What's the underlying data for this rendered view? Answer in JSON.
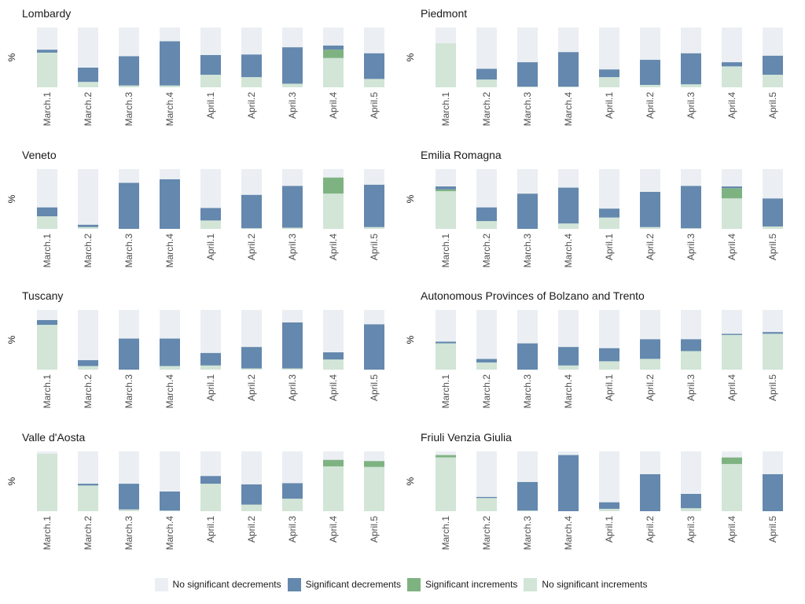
{
  "colors": {
    "no_sig_dec": "#EBEFF3",
    "sig_dec": "#6488AE",
    "sig_inc": "#7EB381",
    "no_sig_inc": "#D2E5D7"
  },
  "legend": [
    {
      "label": "No significant decrements",
      "color_key": "no_sig_dec"
    },
    {
      "label": "Significant decrements",
      "color_key": "sig_dec"
    },
    {
      "label": "Significant increments",
      "color_key": "sig_inc"
    },
    {
      "label": "No significant increments",
      "color_key": "no_sig_inc"
    }
  ],
  "chart_data": [
    {
      "type": "bar",
      "stacked": true,
      "normalized": true,
      "title": "Lombardy",
      "ylabel": "%",
      "categories": [
        "March.1",
        "March.2",
        "March.3",
        "March.4",
        "April.1",
        "April.2",
        "April.3",
        "April.4",
        "April.5"
      ],
      "series": [
        {
          "name": "No significant increments",
          "values": [
            58,
            9,
            3,
            3,
            21,
            17,
            6,
            49,
            14
          ]
        },
        {
          "name": "Significant increments",
          "values": [
            0,
            0,
            0,
            0,
            0,
            0,
            0,
            14,
            0
          ]
        },
        {
          "name": "Significant decrements",
          "values": [
            5,
            24,
            49,
            74,
            33,
            38,
            61,
            7,
            43
          ]
        },
        {
          "name": "No significant decrements",
          "values": [
            37,
            67,
            48,
            23,
            46,
            45,
            33,
            30,
            43
          ]
        }
      ]
    },
    {
      "type": "bar",
      "stacked": true,
      "normalized": true,
      "title": "Piedmont",
      "ylabel": "%",
      "categories": [
        "March.1",
        "March.2",
        "March.3",
        "March.4",
        "April.1",
        "April.2",
        "April.3",
        "April.4",
        "April.5"
      ],
      "series": [
        {
          "name": "No significant increments",
          "values": [
            74,
            13,
            1,
            1,
            17,
            4,
            5,
            35,
            21
          ]
        },
        {
          "name": "Significant increments",
          "values": [
            0,
            0,
            0,
            0,
            0,
            0,
            0,
            0,
            0
          ]
        },
        {
          "name": "Significant decrements",
          "values": [
            0,
            18,
            41,
            58,
            13,
            42,
            52,
            7,
            32
          ]
        },
        {
          "name": "No significant decrements",
          "values": [
            26,
            69,
            58,
            41,
            70,
            54,
            43,
            58,
            47
          ]
        }
      ]
    },
    {
      "type": "bar",
      "stacked": true,
      "normalized": true,
      "title": "Veneto",
      "ylabel": "%",
      "categories": [
        "March.1",
        "March.2",
        "March.3",
        "March.4",
        "April.1",
        "April.2",
        "April.3",
        "April.4",
        "April.5"
      ],
      "series": [
        {
          "name": "No significant increments",
          "values": [
            21,
            3,
            0,
            0,
            14,
            1,
            2,
            59,
            3
          ]
        },
        {
          "name": "Significant increments",
          "values": [
            0,
            0,
            0,
            0,
            0,
            0,
            0,
            27,
            0
          ]
        },
        {
          "name": "Significant decrements",
          "values": [
            15,
            4,
            77,
            83,
            21,
            56,
            70,
            0,
            71
          ]
        },
        {
          "name": "No significant decrements",
          "values": [
            64,
            93,
            23,
            17,
            65,
            43,
            28,
            14,
            26
          ]
        }
      ]
    },
    {
      "type": "bar",
      "stacked": true,
      "normalized": true,
      "title": "Emilia Romagna",
      "ylabel": "%",
      "categories": [
        "March.1",
        "March.2",
        "March.3",
        "March.4",
        "April.1",
        "April.2",
        "April.3",
        "April.4",
        "April.5"
      ],
      "series": [
        {
          "name": "No significant increments",
          "values": [
            63,
            13,
            0,
            9,
            19,
            3,
            1,
            51,
            4
          ]
        },
        {
          "name": "Significant increments",
          "values": [
            3,
            0,
            0,
            0,
            0,
            0,
            0,
            17,
            0
          ]
        },
        {
          "name": "Significant decrements",
          "values": [
            5,
            23,
            59,
            60,
            15,
            59,
            71,
            3,
            47
          ]
        },
        {
          "name": "No significant decrements",
          "values": [
            29,
            64,
            41,
            31,
            66,
            38,
            28,
            29,
            49
          ]
        }
      ]
    },
    {
      "type": "bar",
      "stacked": true,
      "normalized": true,
      "title": "Tuscany",
      "ylabel": "%",
      "categories": [
        "March.1",
        "March.2",
        "March.3",
        "March.4",
        "April.1",
        "April.2",
        "April.3",
        "April.4",
        "April.5"
      ],
      "series": [
        {
          "name": "No significant increments",
          "values": [
            75,
            6,
            0,
            6,
            7,
            2,
            2,
            17,
            0
          ]
        },
        {
          "name": "Significant increments",
          "values": [
            0,
            0,
            0,
            0,
            0,
            0,
            0,
            0,
            0
          ]
        },
        {
          "name": "Significant decrements",
          "values": [
            8,
            10,
            52,
            46,
            21,
            36,
            77,
            12,
            76
          ]
        },
        {
          "name": "No significant decrements",
          "values": [
            17,
            84,
            48,
            48,
            72,
            62,
            21,
            71,
            24
          ]
        }
      ]
    },
    {
      "type": "bar",
      "stacked": true,
      "normalized": true,
      "title": "Autonomous Provinces of Bolzano and Trento",
      "ylabel": "%",
      "categories": [
        "March.1",
        "March.2",
        "March.3",
        "March.4",
        "April.1",
        "April.2",
        "April.3",
        "April.4",
        "April.5"
      ],
      "series": [
        {
          "name": "No significant increments",
          "values": [
            44,
            12,
            0,
            7,
            14,
            18,
            31,
            58,
            60
          ]
        },
        {
          "name": "Significant increments",
          "values": [
            0,
            0,
            0,
            0,
            0,
            0,
            0,
            0,
            0
          ]
        },
        {
          "name": "Significant decrements",
          "values": [
            3,
            6,
            44,
            31,
            22,
            33,
            20,
            2,
            3
          ]
        },
        {
          "name": "No significant decrements",
          "values": [
            53,
            82,
            56,
            62,
            64,
            49,
            49,
            40,
            37
          ]
        }
      ]
    },
    {
      "type": "bar",
      "stacked": true,
      "normalized": true,
      "title": "Valle d'Aosta",
      "ylabel": "%",
      "categories": [
        "March.1",
        "March.2",
        "March.3",
        "March.4",
        "April.1",
        "April.2",
        "April.3",
        "April.4",
        "April.5"
      ],
      "series": [
        {
          "name": "No significant increments",
          "values": [
            96,
            43,
            3,
            1,
            46,
            11,
            21,
            75,
            74
          ]
        },
        {
          "name": "Significant increments",
          "values": [
            0,
            0,
            0,
            0,
            0,
            0,
            0,
            11,
            10
          ]
        },
        {
          "name": "Significant decrements",
          "values": [
            0,
            3,
            43,
            32,
            13,
            34,
            26,
            0,
            0
          ]
        },
        {
          "name": "No significant decrements",
          "values": [
            4,
            54,
            54,
            67,
            41,
            55,
            53,
            14,
            16
          ]
        }
      ]
    },
    {
      "type": "bar",
      "stacked": true,
      "normalized": true,
      "title": "Friuli Venzia Giulia",
      "ylabel": "%",
      "categories": [
        "March.1",
        "March.2",
        "March.3",
        "March.4",
        "April.1",
        "April.2",
        "April.3",
        "April.4",
        "April.5"
      ],
      "series": [
        {
          "name": "No significant increments",
          "values": [
            90,
            22,
            1,
            0,
            4,
            0,
            5,
            79,
            0
          ]
        },
        {
          "name": "Significant increments",
          "values": [
            4,
            0,
            0,
            0,
            0,
            0,
            0,
            11,
            0
          ]
        },
        {
          "name": "Significant decrements",
          "values": [
            0,
            2,
            48,
            94,
            11,
            62,
            24,
            0,
            62
          ]
        },
        {
          "name": "No significant decrements",
          "values": [
            6,
            76,
            51,
            6,
            85,
            38,
            71,
            10,
            38
          ]
        }
      ]
    }
  ]
}
